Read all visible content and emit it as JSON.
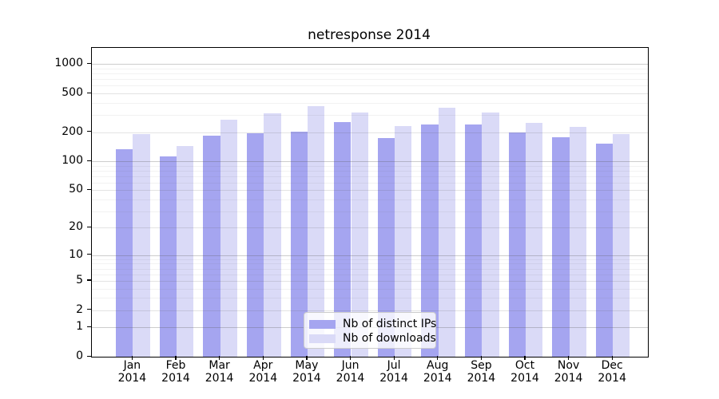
{
  "chart_data": {
    "type": "bar",
    "title": "netresponse 2014",
    "months": [
      "Jan",
      "Feb",
      "Mar",
      "Apr",
      "May",
      "Jun",
      "Jul",
      "Aug",
      "Sep",
      "Oct",
      "Nov",
      "Dec"
    ],
    "year": "2014",
    "series": [
      {
        "name": "Nb of distinct IPs",
        "color": "#a5a5f0",
        "values": [
          134,
          113,
          184,
          193,
          204,
          255,
          174,
          240,
          238,
          200,
          177,
          151
        ]
      },
      {
        "name": "Nb of downloads",
        "color": "#dadaf7",
        "values": [
          192,
          144,
          270,
          310,
          368,
          320,
          233,
          354,
          320,
          251,
          228,
          191
        ]
      }
    ],
    "yscale": "log1p",
    "ylabel": "",
    "xlabel": "",
    "y_axis": {
      "tick_values": [
        0,
        1,
        2,
        5,
        10,
        20,
        50,
        100,
        200,
        500,
        1000
      ],
      "minor_tick_values": [
        3,
        4,
        6,
        7,
        8,
        9,
        30,
        40,
        60,
        70,
        80,
        90,
        300,
        400,
        600,
        700,
        800,
        900
      ],
      "top": 1430
    },
    "grid": true,
    "legend": {
      "position": "lower center",
      "labels": [
        "Nb of distinct IPs",
        "Nb of downloads"
      ]
    },
    "colors": {
      "spine": "#000000",
      "text": "#000000",
      "grid_decade": "rgba(90,90,90,0.30)",
      "grid_labeled": "rgba(90,90,90,0.17)",
      "grid_minor": "rgba(90,90,90,0.08)",
      "legend_border": "#cccccc"
    }
  }
}
